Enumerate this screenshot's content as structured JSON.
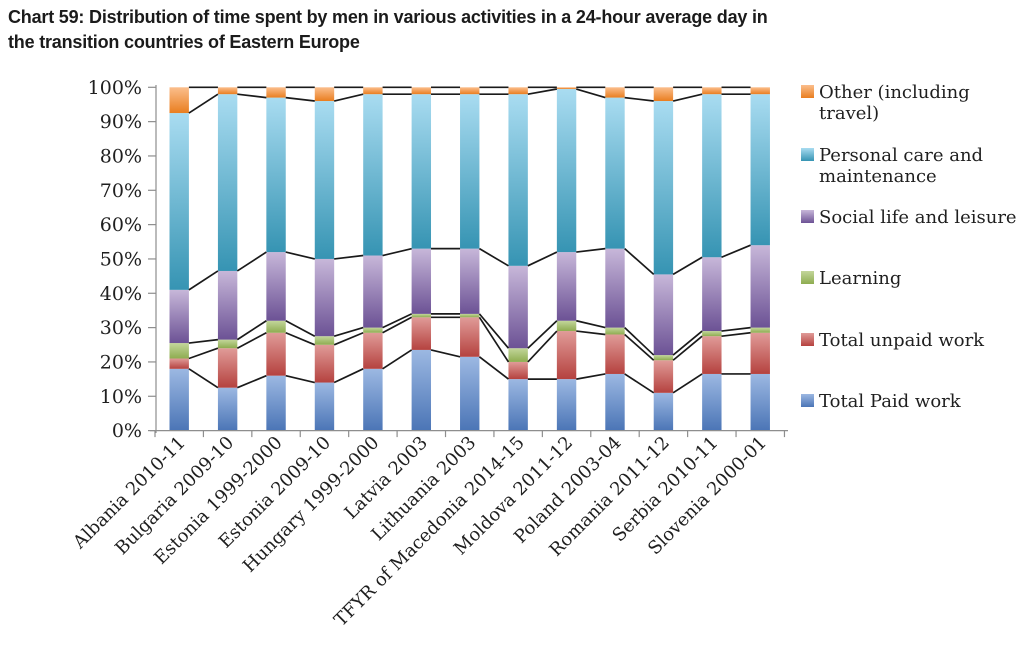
{
  "title_lines": [
    "Chart 59: Distribution of time spent by men in various activities in a 24-hour average day in",
    "the transition countries of Eastern Europe"
  ],
  "chart_data": {
    "type": "bar",
    "variant": "100-percent-stacked-column",
    "title": "Chart 59: Distribution of time spent by men in various activities in a 24-hour average day in the transition countries of Eastern Europe",
    "categories": [
      "Albania 2010-11",
      "Bulgaria 2009-10",
      "Estonia 1999-2000",
      "Estonia 2009-10",
      "Hungary 1999-2000",
      "Latvia 2003",
      "Lithuania 2003",
      "TFYR of Macedonia 2014-15",
      "Moldova 2011-12",
      "Poland 2003-04",
      "Romania 2011-12",
      "Serbia 2010-11",
      "Slovenia 2000-01"
    ],
    "series": [
      {
        "key": "paid",
        "name": "Total Paid work",
        "color_top": "#9CB8E2",
        "color_bottom": "#4B75B6",
        "values": [
          18,
          12.5,
          16,
          14,
          18,
          23.5,
          21.5,
          15,
          15,
          16.5,
          11,
          16.5,
          16.5
        ]
      },
      {
        "key": "unpaid",
        "name": "Total unpaid work",
        "color_top": "#E09B98",
        "color_bottom": "#B5423F",
        "values": [
          3,
          11.5,
          12.5,
          11,
          10.5,
          9.5,
          11.5,
          5,
          14,
          11.5,
          9.5,
          11,
          12
        ]
      },
      {
        "key": "learning",
        "name": "Learning",
        "color_top": "#C3D69B",
        "color_bottom": "#8EAC50",
        "values": [
          4.5,
          2.5,
          3.5,
          2.5,
          1.5,
          1,
          1,
          4,
          3,
          2,
          1.5,
          1.5,
          1.5
        ]
      },
      {
        "key": "social",
        "name": "Social life and leisure",
        "color_top": "#C7B7D9",
        "color_bottom": "#6C5295",
        "values": [
          15.5,
          20,
          20,
          22.5,
          21,
          19,
          19,
          24,
          20,
          23,
          23.5,
          21.5,
          24
        ]
      },
      {
        "key": "personal",
        "name": "Personal care and maintenance",
        "color_top": "#A9DCF1",
        "color_bottom": "#3694B3",
        "values": [
          51.5,
          51.5,
          45,
          46,
          47,
          45,
          45,
          50,
          47.5,
          44,
          50.5,
          47.5,
          44
        ]
      },
      {
        "key": "other",
        "name": "Other (including travel)",
        "color_top": "#FBBE8C",
        "color_bottom": "#E97E20",
        "values": [
          7.5,
          2,
          3,
          4,
          2,
          2,
          2,
          2,
          0.5,
          3,
          4,
          2,
          2
        ]
      }
    ],
    "xlabel": "",
    "ylabel": "",
    "ylim": [
      0,
      100
    ],
    "y_ticks": [
      "0%",
      "10%",
      "20%",
      "30%",
      "40%",
      "50%",
      "60%",
      "70%",
      "80%",
      "90%",
      "100%"
    ],
    "grid": false,
    "legend_position": "right",
    "series_lines": true,
    "axis_color": "#8E8E8E",
    "series_line_color": "#1A1A1A",
    "text_color": "#1F1F1F"
  },
  "legend": {
    "items": [
      {
        "key": "other",
        "lines": [
          "Other (including",
          "travel)"
        ]
      },
      {
        "key": "personal",
        "lines": [
          "Personal care and",
          "maintenance"
        ]
      },
      {
        "key": "social",
        "lines": [
          "Social life and leisure"
        ]
      },
      {
        "key": "learning",
        "lines": [
          "Learning"
        ]
      },
      {
        "key": "unpaid",
        "lines": [
          "Total unpaid work"
        ]
      },
      {
        "key": "paid",
        "lines": [
          "Total Paid work"
        ]
      }
    ]
  }
}
